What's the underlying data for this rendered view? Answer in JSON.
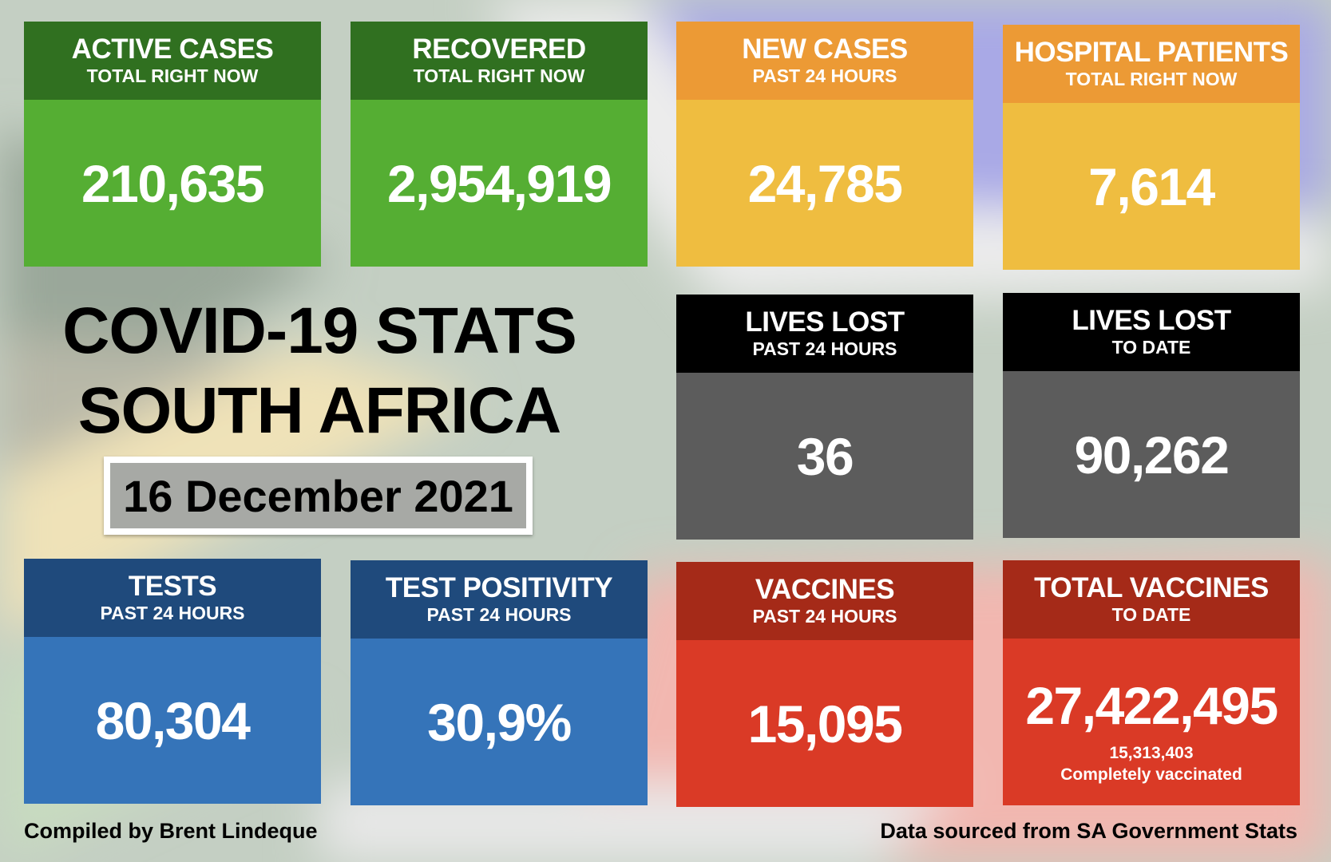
{
  "title_line1": "COVID-19 STATS",
  "title_line2": "SOUTH AFRICA",
  "date": "16 December 2021",
  "cards": [
    {
      "title": "ACTIVE CASES",
      "subtitle": "TOTAL RIGHT NOW",
      "value": "210,635",
      "header_color": "#307020",
      "body_color": "#55ae33"
    },
    {
      "title": "RECOVERED",
      "subtitle": "TOTAL RIGHT NOW",
      "value": "2,954,919",
      "header_color": "#307020",
      "body_color": "#55ae33"
    },
    {
      "title": "NEW CASES",
      "subtitle": "PAST 24 HOURS",
      "value": "24,785",
      "header_color": "#ec9a35",
      "body_color": "#efbd40"
    },
    {
      "title": "HOSPITAL PATIENTS",
      "subtitle": "TOTAL RIGHT NOW",
      "value": "7,614",
      "header_color": "#ec9a35",
      "body_color": "#efbd40"
    },
    {
      "title": "LIVES LOST",
      "subtitle": "PAST 24 HOURS",
      "value": "36",
      "header_color": "#000000",
      "body_color": "#5c5c5c"
    },
    {
      "title": "LIVES LOST",
      "subtitle": "TO DATE",
      "value": "90,262",
      "header_color": "#000000",
      "body_color": "#5c5c5c"
    },
    {
      "title": "TESTS",
      "subtitle": "PAST 24 HOURS",
      "value": "80,304",
      "header_color": "#1f4a7c",
      "body_color": "#3574b9"
    },
    {
      "title": "TEST POSITIVITY",
      "subtitle": "PAST 24 HOURS",
      "value": "30,9%",
      "header_color": "#1f4a7c",
      "body_color": "#3574b9"
    },
    {
      "title": "VACCINES",
      "subtitle": "PAST 24 HOURS",
      "value": "15,095",
      "header_color": "#a52a18",
      "body_color": "#da3a26"
    },
    {
      "title": "TOTAL VACCINES",
      "subtitle": "TO DATE",
      "value": "27,422,495",
      "header_color": "#a52a18",
      "body_color": "#da3a26",
      "extra_value": "15,313,403",
      "extra_label": "Completely vaccinated"
    }
  ],
  "footer_left": "Compiled by Brent Lindeque",
  "footer_right": "Data sourced from SA Government Stats"
}
